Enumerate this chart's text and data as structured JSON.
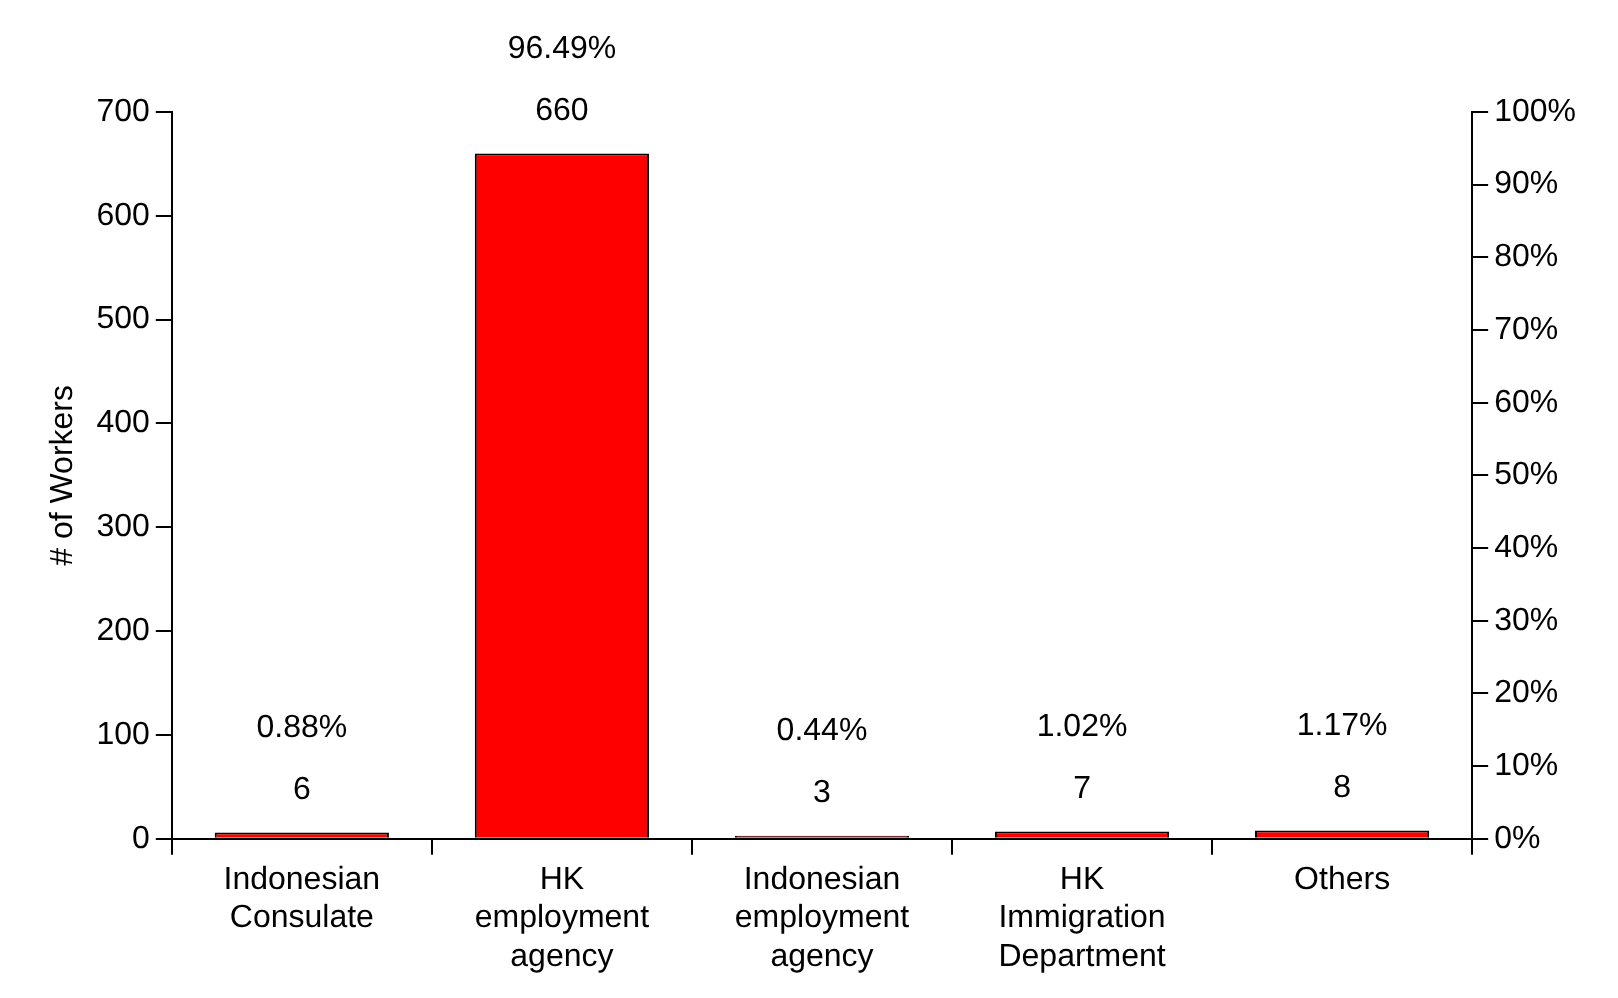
{
  "chart_data": {
    "type": "bar",
    "ylabel": "# of Workers",
    "categories": [
      "Indonesian Consulate",
      "HK employment agency",
      "Indonesian employment agency",
      "HK Immigration Department",
      "Others"
    ],
    "series": [
      {
        "color": "#ff0000",
        "values": [
          6,
          660,
          3,
          7,
          8
        ]
      }
    ],
    "data_labels": true,
    "annotations": [
      {
        "text": "0.88%",
        "x": "Indonesian Consulate",
        "y": 6
      },
      {
        "text": "96.49%",
        "x": "HK employment agency",
        "y": 660
      },
      {
        "text": "0.44%",
        "x": "Indonesian employment agency",
        "y": 3
      },
      {
        "text": "1.02%",
        "x": "HK Immigration Department",
        "y": 7
      },
      {
        "text": "1.17%",
        "x": "Others",
        "y": 8
      }
    ],
    "ylim": [
      0,
      700
    ],
    "yticks": [
      0,
      100,
      200,
      300,
      400,
      500,
      600,
      700
    ],
    "y2lim": [
      0,
      100
    ],
    "y2ticks": [
      {
        "value": 0,
        "label": "0%"
      },
      {
        "value": 10,
        "label": "10%"
      },
      {
        "value": 20,
        "label": "20%"
      },
      {
        "value": 30,
        "label": "30%"
      },
      {
        "value": 40,
        "label": "40%"
      },
      {
        "value": 50,
        "label": "50%"
      },
      {
        "value": 60,
        "label": "60%"
      },
      {
        "value": 70,
        "label": "70%"
      },
      {
        "value": 80,
        "label": "80%"
      },
      {
        "value": 90,
        "label": "90%"
      },
      {
        "value": 100,
        "label": "100%"
      }
    ],
    "grid": false,
    "legend": false
  }
}
